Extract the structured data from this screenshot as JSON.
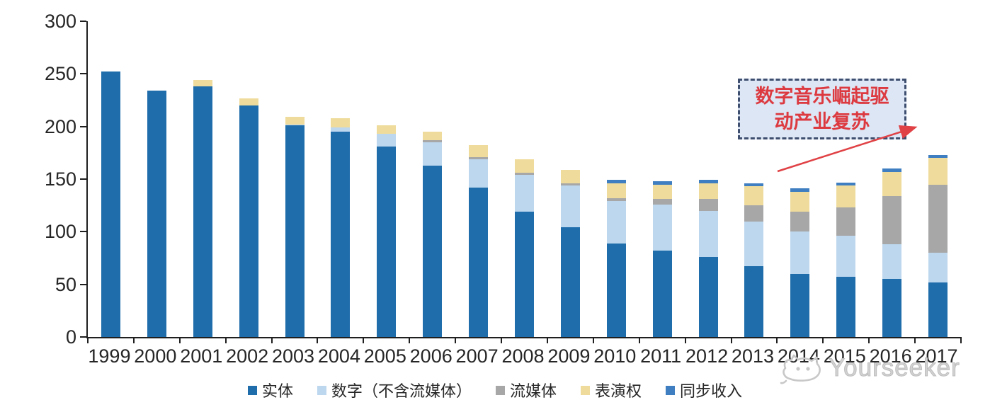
{
  "chart_data": {
    "type": "bar",
    "stacked": true,
    "grid": false,
    "legend_position": "bottom",
    "ylim": [
      0,
      300
    ],
    "yticks": [
      0,
      50,
      100,
      150,
      200,
      250,
      300
    ],
    "categories": [
      "1999",
      "2000",
      "2001",
      "2002",
      "2003",
      "2004",
      "2005",
      "2006",
      "2007",
      "2008",
      "2009",
      "2010",
      "2011",
      "2012",
      "2013",
      "2014",
      "2015",
      "2016",
      "2017"
    ],
    "series": [
      {
        "name": "实体",
        "color": "#1F6DAB",
        "values": [
          252,
          234,
          238,
          220,
          201,
          195,
          181,
          163,
          142,
          119,
          104,
          89,
          82,
          76,
          67,
          60,
          57,
          55,
          52
        ]
      },
      {
        "name": "数字（不含流媒体）",
        "color": "#BDD7EE",
        "values": [
          0,
          0,
          0,
          0,
          1,
          4,
          12,
          22,
          27,
          35,
          40,
          40,
          44,
          44,
          43,
          40,
          39,
          33,
          28
        ]
      },
      {
        "name": "流媒体",
        "color": "#A7A7A7",
        "values": [
          0,
          0,
          0,
          0,
          0,
          0,
          0,
          2,
          2,
          2,
          2,
          3,
          5,
          11,
          15,
          19,
          27,
          46,
          65
        ]
      },
      {
        "name": "表演权",
        "color": "#EFDC9C",
        "values": [
          0,
          0,
          6,
          7,
          7,
          9,
          8,
          8,
          11,
          13,
          13,
          14,
          14,
          15,
          18,
          19,
          21,
          23,
          25
        ]
      },
      {
        "name": "同步收入",
        "color": "#3F7FC1",
        "values": [
          0,
          0,
          0,
          0,
          0,
          0,
          0,
          0,
          0,
          0,
          0,
          3,
          3,
          3,
          3,
          3,
          3,
          3,
          3
        ]
      }
    ]
  },
  "annotation": {
    "line1": "数字音乐崛起驱",
    "line2": "动产业复苏"
  },
  "watermark": {
    "text": "Yourseeker"
  },
  "colors": {
    "axis": "#262626",
    "annotation_text": "#DC3A40",
    "annotation_border": "#3E4E6F",
    "annotation_bg": "#DCE6F4",
    "arrow": "#E04145",
    "watermark": "#D2D2D2"
  }
}
